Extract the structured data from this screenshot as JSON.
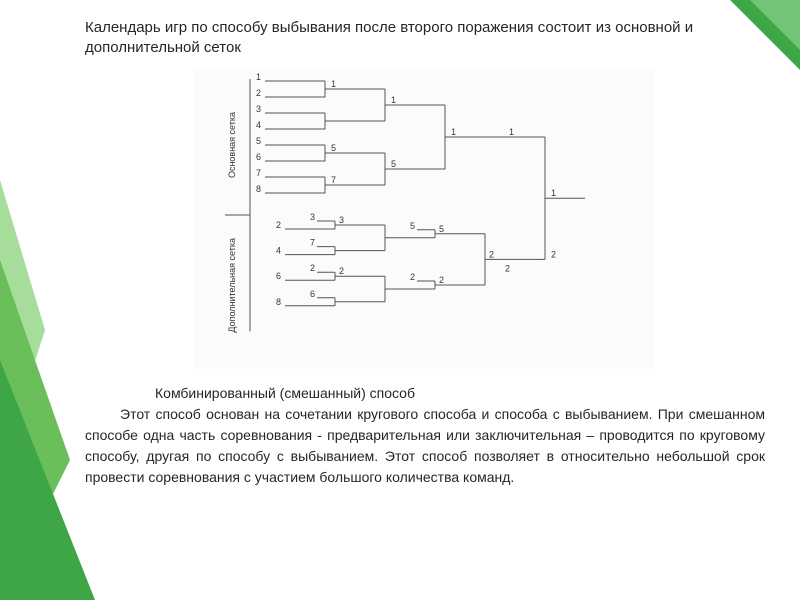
{
  "deco": {
    "corner_color": "#3fa648",
    "corner_color_light": "#8fd28c",
    "left_green": "#3fa648",
    "left_green_mid": "#6bbf5a",
    "left_green_light": "#a7dd9a"
  },
  "title": "Календарь игр по способу выбывания после второго поражения состоит из основной и дополнительной сеток",
  "bracket": {
    "stroke": "#555555",
    "bg": "#fbfbf9",
    "main_label": "Основная сетка",
    "extra_label": "Дополнительная сетка",
    "main": {
      "r1": [
        "1",
        "2",
        "3",
        "4",
        "5",
        "6",
        "7",
        "8"
      ],
      "r2": [
        "1",
        "",
        "5",
        ""
      ],
      "r2b": [
        "",
        "",
        "",
        "7"
      ],
      "r3": [
        "5"
      ],
      "r3top": "1",
      "r4top": "1",
      "r5top": "1",
      "r5bot": "2"
    },
    "extra": {
      "r1": [
        "2",
        "4",
        "6",
        "8"
      ],
      "r2pre": [
        "3",
        "7",
        "2",
        "6"
      ],
      "r2out": [
        "3",
        "",
        "2",
        ""
      ],
      "r3pre": [
        "5",
        "2"
      ],
      "r3out": [
        "5",
        "2"
      ],
      "r4": "2",
      "final": "2"
    }
  },
  "body": {
    "subtitle": "Комбинированный (смешанный) способ",
    "para": "Этот способ основан на сочетании кругового способа и способа с выбыванием. При смешанном способе одна часть соревнования - предварительная или заключительная – проводится по круговому способу, другая по способу с выбыванием. Этот способ позволяет в относительно небольшой срок провести соревнования с участием большого количества команд."
  }
}
